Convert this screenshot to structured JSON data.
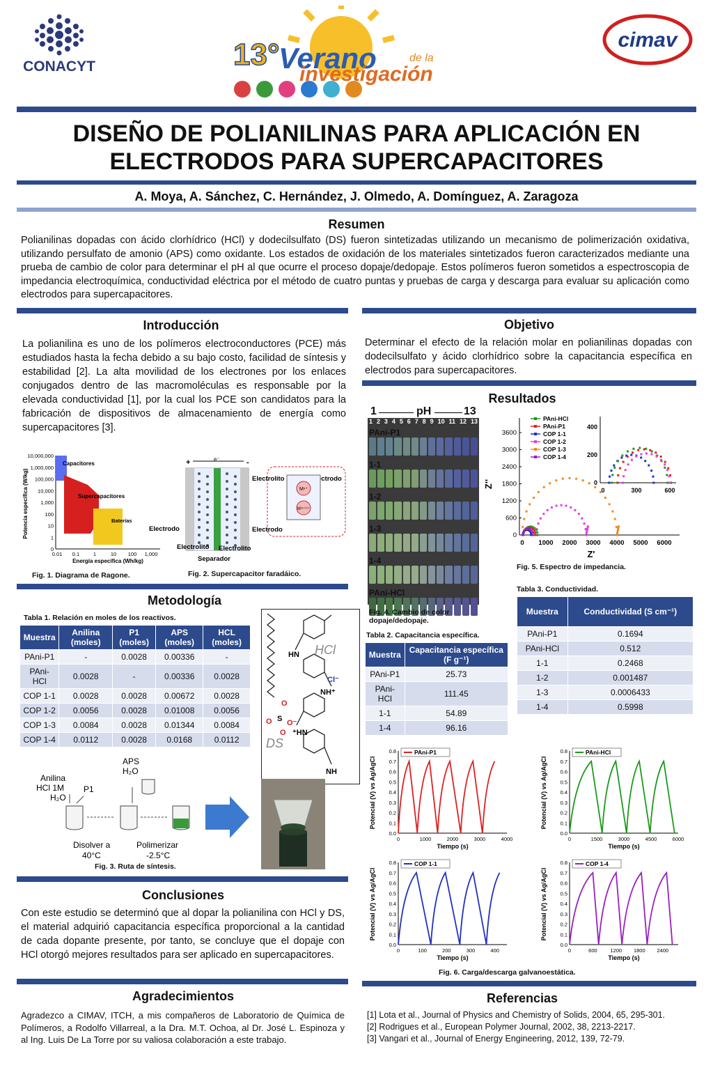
{
  "header": {
    "left_logo": "CONACYT",
    "center_logo_number": "13°",
    "center_logo_line1": "Verano",
    "center_logo_line1b": "de la",
    "center_logo_line2": "investigación",
    "right_logo": "cimav"
  },
  "title_line1": "DISEÑO DE POLIANILINAS PARA APLICACIÓN EN",
  "title_line2": "ELECTRODOS PARA SUPERCAPACITORES",
  "authors": "A. Moya, A. Sánchez, C. Hernández, J. Olmedo, A. Domínguez, A. Zaragoza",
  "resumen": {
    "heading": "Resumen",
    "text": "Polianilinas dopadas con ácido clorhídrico (HCl) y dodecilsulfato (DS) fueron sintetizadas utilizando un mecanismo de polimerización oxidativa, utilizando persulfato de amonio (APS) como oxidante. Los estados de oxidación de los materiales sintetizados fueron caracterizados mediante una prueba de cambio de color para determinar el pH al que ocurre el proceso dopaje/dedopaje. Estos polímeros fueron sometidos a espectroscopia de impedancia electroquímica, conductividad eléctrica por el método de cuatro puntas y pruebas de carga y descarga para evaluar su aplicación como electrodos para supercapacitores."
  },
  "introduccion": {
    "heading": "Introducción",
    "text": "La polianilina es uno de los polímeros electroconductores (PCE) más estudiados hasta la fecha debido a su bajo costo, facilidad de síntesis y estabilidad [2]. La alta movilidad de los electrones por los enlaces conjugados dentro de las macromoléculas es responsable por la elevada conductividad [1], por la cual los PCE son candidatos para la fabricación de dispositivos de almacenamiento de energía como supercapacitores [3]."
  },
  "objetivo": {
    "heading": "Objetivo",
    "text": "Determinar el efecto de la relación molar en polianilinas dopadas con dodecilsulfato y ácido clorhídrico sobre la capacitancia específica en electrodos para supercapacitores."
  },
  "resultados": {
    "heading": "Resultados"
  },
  "fig1": {
    "caption": "Fig. 1. Diagrama de Ragone.",
    "ylabel": "Potencia específica (W/kg)",
    "xlabel": "Energía específica (Wh/kg)",
    "yticks": [
      "10,000,000",
      "1,000,000",
      "100,000",
      "10,000",
      "1,000",
      "100",
      "10",
      "1",
      "0"
    ],
    "xticks": [
      "0.01",
      "0.1",
      "1",
      "10",
      "100",
      "1,000"
    ],
    "label_capacitores": "Capacitores",
    "label_super": "Supercapacitores",
    "label_baterias": "Baterías",
    "color_capacitores": "#5b6df0",
    "color_super": "#d62020",
    "color_baterias": "#f2c81e"
  },
  "fig2": {
    "caption": "Fig. 2. Supercapacitor faradáico.",
    "electrodo": "Electrodo",
    "electrolito": "Electrolito",
    "separador": "Separador",
    "plus": "+",
    "minus": "-",
    "electron": "e⁻",
    "m_n": "Mⁿ⁺",
    "m_n1": "M⁽ⁿ⁺¹⁾⁺"
  },
  "fig4": {
    "caption_line1": "Fig. 4. Cambio de color",
    "caption_line2": "dopaje/dedopaje.",
    "ph_left": "1",
    "ph_label": "pH",
    "ph_right": "13",
    "ph_values": [
      "1",
      "2",
      "3",
      "4",
      "5",
      "6",
      "7",
      "8",
      "9",
      "10",
      "11",
      "12",
      "13"
    ],
    "rows": [
      "PAni-P1",
      "1-1",
      "1-2",
      "1-3",
      "1-4",
      "PAni-HCl"
    ]
  },
  "fig5": {
    "caption": "Fig. 5. Espectro de impedancia.",
    "ylabel": "Z''",
    "xlabel": "Z'",
    "yticks": [
      "0",
      "600",
      "1200",
      "1800",
      "2400",
      "3000",
      "3600"
    ],
    "xticks": [
      "0",
      "1000",
      "2000",
      "3000",
      "4000",
      "5000",
      "6000"
    ],
    "inset_yticks": [
      "0",
      "200",
      "400"
    ],
    "inset_xticks": [
      "0",
      "300",
      "600"
    ],
    "legend": [
      {
        "name": "PAni-HCl",
        "color": "#1a9a1a"
      },
      {
        "name": "PAni-P1",
        "color": "#e02020"
      },
      {
        "name": "COP 1-1",
        "color": "#2030c0"
      },
      {
        "name": "COP 1-2",
        "color": "#e040e0"
      },
      {
        "name": "COP 1-3",
        "color": "#f08a20"
      },
      {
        "name": "COP 1-4",
        "color": "#9a20c0"
      }
    ]
  },
  "metodologia": {
    "heading": "Metodología",
    "table1_caption": "Tabla 1. Relación en moles de los reactivos.",
    "table1_headers": [
      "Muestra",
      "Anilina (moles)",
      "P1 (moles)",
      "APS (moles)",
      "HCL (moles)"
    ],
    "table1_rows": [
      [
        "PAni-P1",
        "-",
        "0.0028",
        "0.00336",
        "-"
      ],
      [
        "PAni-HCl",
        "0.0028",
        "-",
        "0.00336",
        "0.0028"
      ],
      [
        "COP 1-1",
        "0.0028",
        "0.0028",
        "0.00672",
        "0.0028"
      ],
      [
        "COP 1-2",
        "0.0056",
        "0.0028",
        "0.01008",
        "0.0056"
      ],
      [
        "COP 1-3",
        "0.0084",
        "0.0028",
        "0.01344",
        "0.0084"
      ],
      [
        "COP 1-4",
        "0.0112",
        "0.0028",
        "0.0168",
        "0.0112"
      ]
    ]
  },
  "fig3": {
    "caption": "Fig. 3. Ruta de síntesis.",
    "anilina": "Anilina",
    "hcl": "HCl 1M",
    "h2o": "H₂O",
    "p1": "P1",
    "aps": "APS",
    "aps_h2o": "H₂O",
    "disolver": "Disolver a",
    "disolver_t": "40°C",
    "polimerizar": "Polimerizar",
    "polimerizar_t": "-2.5°C"
  },
  "structure": {
    "hcl": "HCl",
    "cl": "Cl⁻",
    "hn": "HN",
    "nh_plus": "NH⁺",
    "hn_plus": "⁺HN",
    "nh": "NH",
    "ds": "DS",
    "s": "S",
    "o": "O",
    "o_minus": "O⁻"
  },
  "tabla2": {
    "caption": "Tabla 2. Capacitancia específica.",
    "headers": [
      "Muestra",
      "Capacitancia específica (F g⁻¹)"
    ],
    "rows": [
      [
        "PAni-P1",
        "25.73"
      ],
      [
        "PAni-HCl",
        "111.45"
      ],
      [
        "1-1",
        "54.89"
      ],
      [
        "1-4",
        "96.16"
      ]
    ]
  },
  "tabla3": {
    "caption": "Tabla 3. Conductividad.",
    "headers": [
      "Muestra",
      "Conductividad (S cm⁻¹)"
    ],
    "rows": [
      [
        "PAni-P1",
        "0.1694"
      ],
      [
        "PAni-HCl",
        "0.512"
      ],
      [
        "1-1",
        "0.2468"
      ],
      [
        "1-2",
        "0.001487"
      ],
      [
        "1-3",
        "0.0006433"
      ],
      [
        "1-4",
        "0.5998"
      ]
    ]
  },
  "fig6": {
    "caption": "Fig. 6. Carga/descarga galvanoestática.",
    "ylabel": "Potencial (V) vs Ag/AgCl",
    "xlabel": "Tiempo (s)",
    "yticks": [
      "0.0",
      "0.1",
      "0.2",
      "0.3",
      "0.4",
      "0.5",
      "0.6",
      "0.7",
      "0.8"
    ]
  },
  "chart_data": [
    {
      "type": "line",
      "title": "",
      "legend": "PAni-P1",
      "color": "#e02020",
      "x_ticks": [
        "0",
        "1000",
        "2000",
        "3000",
        "4000"
      ],
      "xlim": [
        0,
        4000
      ],
      "ylim": [
        0,
        0.8
      ],
      "x": [
        0,
        400,
        700,
        1150,
        1450,
        1900,
        2300,
        2750,
        3100,
        3550
      ],
      "y": [
        0,
        0.7,
        0,
        0.7,
        0,
        0.7,
        0,
        0.7,
        0,
        0.7
      ]
    },
    {
      "type": "line",
      "title": "",
      "legend": "PAni-HCl",
      "color": "#1a9a1a",
      "x_ticks": [
        "0",
        "1500",
        "3000",
        "4500",
        "6000"
      ],
      "xlim": [
        0,
        6000
      ],
      "ylim": [
        0,
        0.8
      ],
      "x": [
        0,
        1200,
        1800,
        2550,
        3150,
        3850,
        4450,
        5200,
        5800
      ],
      "y": [
        0,
        0.7,
        0,
        0.7,
        0,
        0.7,
        0,
        0.7,
        0
      ]
    },
    {
      "type": "line",
      "title": "",
      "legend": "COP 1-1",
      "color": "#2030c0",
      "x_ticks": [
        "0",
        "100",
        "200",
        "300",
        "400"
      ],
      "xlim": [
        0,
        450
      ],
      "ylim": [
        0,
        0.8
      ],
      "x": [
        0,
        75,
        135,
        195,
        255,
        310,
        365,
        420
      ],
      "y": [
        0,
        0.7,
        0,
        0.7,
        0,
        0.7,
        0,
        0.7
      ]
    },
    {
      "type": "line",
      "title": "",
      "legend": "COP 1-4",
      "color": "#9a20c0",
      "x_ticks": [
        "0",
        "600",
        "1200",
        "1800",
        "2400"
      ],
      "xlim": [
        0,
        2800
      ],
      "ylim": [
        0,
        0.8
      ],
      "x": [
        0,
        600,
        750,
        1200,
        1350,
        1850,
        2000,
        2500,
        2650
      ],
      "y": [
        0,
        0.7,
        0,
        0.7,
        0,
        0.7,
        0,
        0.7,
        0
      ]
    }
  ],
  "conclusiones": {
    "heading": "Conclusiones",
    "text": "Con este estudio se determinó que al dopar la polianilina con HCl y DS, el material adquirió capacitancia específica proporcional a la cantidad de cada dopante presente, por tanto, se concluye que el dopaje con HCl otorgó mejores resultados para ser aplicado en supercapacitores."
  },
  "agradecimientos": {
    "heading": "Agradecimientos",
    "text": "Agradezco a CIMAV, ITCH, a mis compañeros de Laboratorio de Química de Polímeros, a Rodolfo Villarreal, a la Dra. M.T. Ochoa, al Dr. José L. Espinoza y al Ing. Luis De La Torre por su valiosa colaboración a este trabajo."
  },
  "referencias": {
    "heading": "Referencias",
    "items": [
      "[1] Lota et al., Journal of Physics and Chemistry of Solids, 2004, 65, 295-301.",
      "[2] Rodrigues et al., European Polymer Journal, 2002, 38, 2213-2217.",
      "[3] Vangari et al., Journal of Energy Engineering, 2012, 139, 72-79."
    ]
  }
}
